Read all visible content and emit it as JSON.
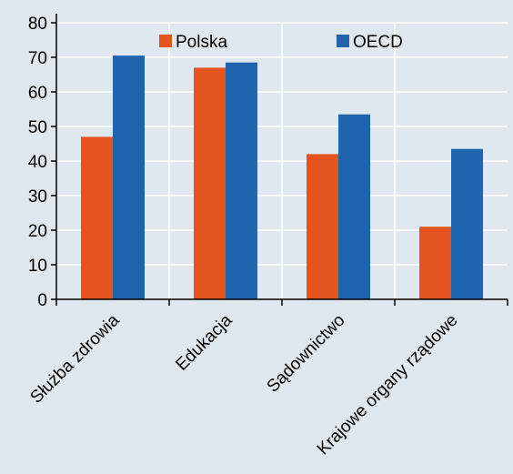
{
  "chart_data": {
    "type": "bar",
    "categories": [
      "Służba zdrowia",
      "Edukacja",
      "Sądownictwo",
      "Krajowe organy rządowe"
    ],
    "series": [
      {
        "name": "Polska",
        "values": [
          47,
          67,
          42,
          21
        ]
      },
      {
        "name": "OECD",
        "values": [
          70.5,
          68.5,
          53.5,
          43.5
        ]
      }
    ],
    "ylim": [
      0,
      80
    ],
    "yticks": [
      0,
      10,
      20,
      30,
      40,
      50,
      60,
      70,
      80
    ],
    "grid": true,
    "legend_position": "top",
    "colors": {
      "Polska": "#e5541f",
      "OECD": "#1f64ad",
      "background": "#dfe8ee",
      "grid": "#ffffff"
    }
  }
}
